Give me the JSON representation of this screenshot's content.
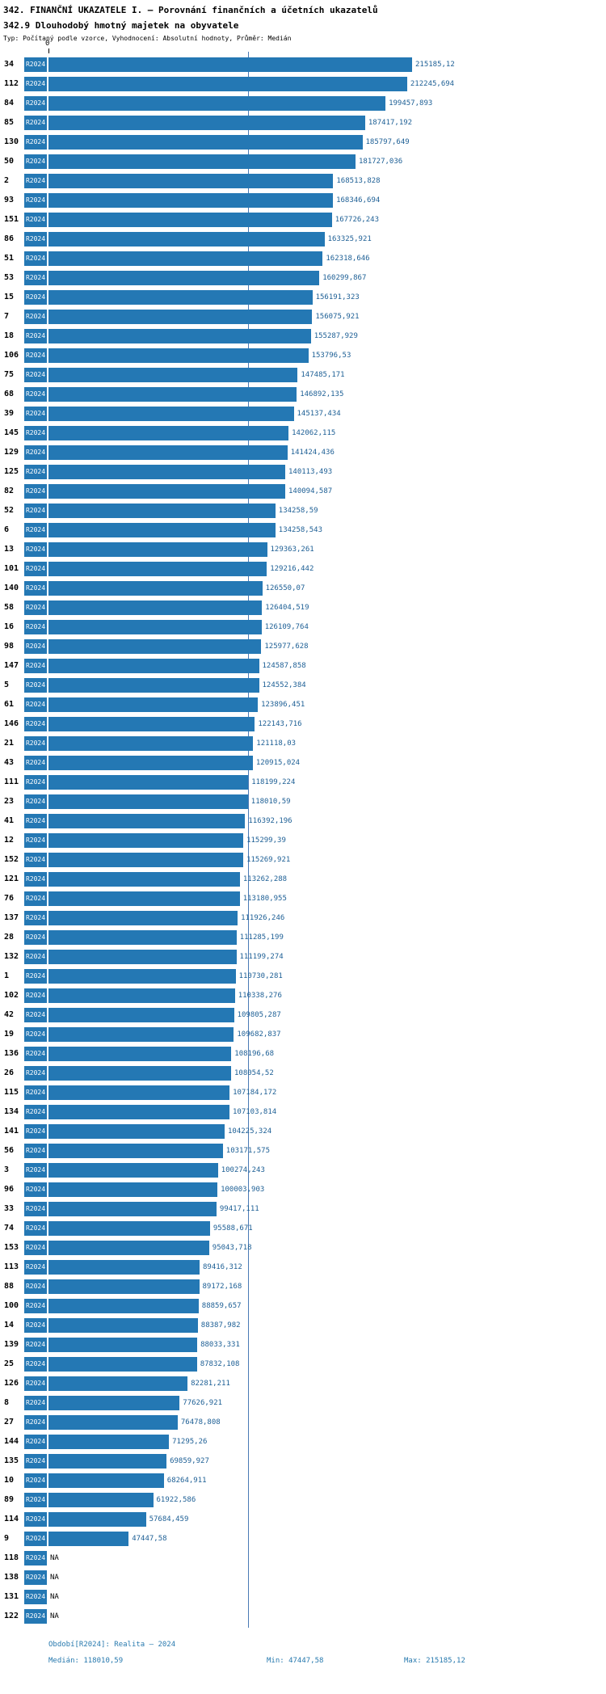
{
  "header": {
    "title": "342. FINANČNÍ UKAZATELE I. – Porovnání finančních a účetních ukazatelů",
    "subtitle": "342.9 Dlouhodobý hmotný majetek na obyvatele",
    "meta": "Typ: Počítaný podle vzorce, Vyhodnocení: Absolutní hodnoty, Průměr: Medián"
  },
  "chart_data": {
    "type": "bar",
    "orientation": "horizontal",
    "title": "342.9 Dlouhodobý hmotný majetek na obyvatele",
    "series_label": "R2024",
    "bar_color": "#2478b4",
    "axis": {
      "zero_label": "0",
      "min": 0,
      "max": 215185.12,
      "median_line": 118010.59
    },
    "rows": [
      {
        "id": "34",
        "value": 215185.12,
        "label": "215185,12"
      },
      {
        "id": "112",
        "value": 212245.694,
        "label": "212245,694"
      },
      {
        "id": "84",
        "value": 199457.893,
        "label": "199457,893"
      },
      {
        "id": "85",
        "value": 187417.192,
        "label": "187417,192"
      },
      {
        "id": "130",
        "value": 185797.649,
        "label": "185797,649"
      },
      {
        "id": "50",
        "value": 181727.036,
        "label": "181727,036"
      },
      {
        "id": "2",
        "value": 168513.828,
        "label": "168513,828"
      },
      {
        "id": "93",
        "value": 168346.694,
        "label": "168346,694"
      },
      {
        "id": "151",
        "value": 167726.243,
        "label": "167726,243"
      },
      {
        "id": "86",
        "value": 163325.921,
        "label": "163325,921"
      },
      {
        "id": "51",
        "value": 162318.646,
        "label": "162318,646"
      },
      {
        "id": "53",
        "value": 160299.867,
        "label": "160299,867"
      },
      {
        "id": "15",
        "value": 156191.323,
        "label": "156191,323"
      },
      {
        "id": "7",
        "value": 156075.921,
        "label": "156075,921"
      },
      {
        "id": "18",
        "value": 155287.929,
        "label": "155287,929"
      },
      {
        "id": "106",
        "value": 153796.53,
        "label": "153796,53"
      },
      {
        "id": "75",
        "value": 147485.171,
        "label": "147485,171"
      },
      {
        "id": "68",
        "value": 146892.135,
        "label": "146892,135"
      },
      {
        "id": "39",
        "value": 145137.434,
        "label": "145137,434"
      },
      {
        "id": "145",
        "value": 142062.115,
        "label": "142062,115"
      },
      {
        "id": "129",
        "value": 141424.436,
        "label": "141424,436"
      },
      {
        "id": "125",
        "value": 140113.493,
        "label": "140113,493"
      },
      {
        "id": "82",
        "value": 140094.587,
        "label": "140094,587"
      },
      {
        "id": "52",
        "value": 134258.59,
        "label": "134258,59"
      },
      {
        "id": "6",
        "value": 134258.543,
        "label": "134258,543"
      },
      {
        "id": "13",
        "value": 129363.261,
        "label": "129363,261"
      },
      {
        "id": "101",
        "value": 129216.442,
        "label": "129216,442"
      },
      {
        "id": "140",
        "value": 126550.07,
        "label": "126550,07"
      },
      {
        "id": "58",
        "value": 126404.519,
        "label": "126404,519"
      },
      {
        "id": "16",
        "value": 126109.764,
        "label": "126109,764"
      },
      {
        "id": "98",
        "value": 125977.628,
        "label": "125977,628"
      },
      {
        "id": "147",
        "value": 124587.858,
        "label": "124587,858"
      },
      {
        "id": "5",
        "value": 124552.384,
        "label": "124552,384"
      },
      {
        "id": "61",
        "value": 123896.451,
        "label": "123896,451"
      },
      {
        "id": "146",
        "value": 122143.716,
        "label": "122143,716"
      },
      {
        "id": "21",
        "value": 121118.03,
        "label": "121118,03"
      },
      {
        "id": "43",
        "value": 120915.024,
        "label": "120915,024"
      },
      {
        "id": "111",
        "value": 118199.224,
        "label": "118199,224"
      },
      {
        "id": "23",
        "value": 118010.59,
        "label": "118010,59"
      },
      {
        "id": "41",
        "value": 116392.196,
        "label": "116392,196"
      },
      {
        "id": "12",
        "value": 115299.39,
        "label": "115299,39"
      },
      {
        "id": "152",
        "value": 115269.921,
        "label": "115269,921"
      },
      {
        "id": "121",
        "value": 113262.288,
        "label": "113262,288"
      },
      {
        "id": "76",
        "value": 113180.955,
        "label": "113180,955"
      },
      {
        "id": "137",
        "value": 111926.246,
        "label": "111926,246"
      },
      {
        "id": "28",
        "value": 111285.199,
        "label": "111285,199"
      },
      {
        "id": "132",
        "value": 111199.274,
        "label": "111199,274"
      },
      {
        "id": "1",
        "value": 110730.281,
        "label": "110730,281"
      },
      {
        "id": "102",
        "value": 110338.276,
        "label": "110338,276"
      },
      {
        "id": "42",
        "value": 109805.287,
        "label": "109805,287"
      },
      {
        "id": "19",
        "value": 109682.837,
        "label": "109682,837"
      },
      {
        "id": "136",
        "value": 108196.68,
        "label": "108196,68"
      },
      {
        "id": "26",
        "value": 108054.52,
        "label": "108054,52"
      },
      {
        "id": "115",
        "value": 107184.172,
        "label": "107184,172"
      },
      {
        "id": "134",
        "value": 107103.814,
        "label": "107103,814"
      },
      {
        "id": "141",
        "value": 104225.324,
        "label": "104225,324"
      },
      {
        "id": "56",
        "value": 103171.575,
        "label": "103171,575"
      },
      {
        "id": "3",
        "value": 100274.243,
        "label": "100274,243"
      },
      {
        "id": "96",
        "value": 100003.903,
        "label": "100003,903"
      },
      {
        "id": "33",
        "value": 99417.111,
        "label": "99417,111"
      },
      {
        "id": "74",
        "value": 95588.671,
        "label": "95588,671"
      },
      {
        "id": "153",
        "value": 95043.718,
        "label": "95043,718"
      },
      {
        "id": "113",
        "value": 89416.312,
        "label": "89416,312"
      },
      {
        "id": "88",
        "value": 89172.168,
        "label": "89172,168"
      },
      {
        "id": "100",
        "value": 88859.657,
        "label": "88859,657"
      },
      {
        "id": "14",
        "value": 88387.982,
        "label": "88387,982"
      },
      {
        "id": "139",
        "value": 88033.331,
        "label": "88033,331"
      },
      {
        "id": "25",
        "value": 87832.108,
        "label": "87832,108"
      },
      {
        "id": "126",
        "value": 82281.211,
        "label": "82281,211"
      },
      {
        "id": "8",
        "value": 77626.921,
        "label": "77626,921"
      },
      {
        "id": "27",
        "value": 76478.808,
        "label": "76478,808"
      },
      {
        "id": "144",
        "value": 71295.26,
        "label": "71295,26"
      },
      {
        "id": "135",
        "value": 69859.927,
        "label": "69859,927"
      },
      {
        "id": "10",
        "value": 68264.911,
        "label": "68264,911"
      },
      {
        "id": "89",
        "value": 61922.586,
        "label": "61922,586"
      },
      {
        "id": "114",
        "value": 57684.459,
        "label": "57684,459"
      },
      {
        "id": "9",
        "value": 47447.58,
        "label": "47447,58"
      },
      {
        "id": "118",
        "value": null,
        "label": "NA"
      },
      {
        "id": "138",
        "value": null,
        "label": "NA"
      },
      {
        "id": "131",
        "value": null,
        "label": "NA"
      },
      {
        "id": "122",
        "value": null,
        "label": "NA"
      }
    ]
  },
  "footer": {
    "period": "Období[R2024]: Realita – 2024",
    "median": "Medián: 118010,59",
    "min": "Min: 47447,58",
    "max": "Max: 215185,12"
  }
}
